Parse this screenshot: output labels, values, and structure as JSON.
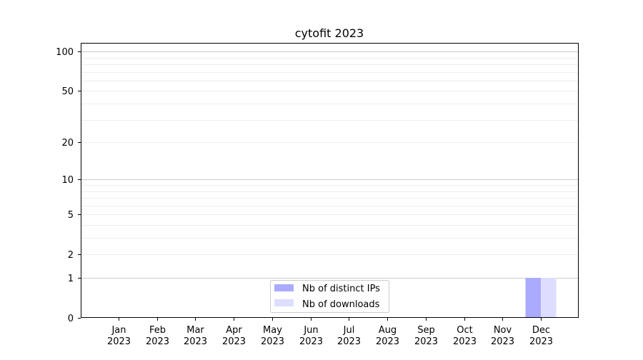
{
  "chart_data": {
    "type": "bar",
    "title": "cytofit 2023",
    "xlabel": "",
    "ylabel": "",
    "categories": [
      "Jan\n2023",
      "Feb\n2023",
      "Mar\n2023",
      "Apr\n2023",
      "May\n2023",
      "Jun\n2023",
      "Jul\n2023",
      "Aug\n2023",
      "Sep\n2023",
      "Oct\n2023",
      "Nov\n2023",
      "Dec\n2023"
    ],
    "series": [
      {
        "name": "Nb of distinct IPs",
        "color": "#aaaaff",
        "values": [
          0,
          0,
          0,
          0,
          0,
          0,
          0,
          0,
          0,
          0,
          0,
          1
        ]
      },
      {
        "name": "Nb of downloads",
        "color": "#ddddff",
        "values": [
          0,
          0,
          0,
          0,
          0,
          0,
          0,
          0,
          0,
          0,
          0,
          1
        ]
      }
    ],
    "yscale": "log(1+y)",
    "yticks": [
      0,
      1,
      2,
      5,
      10,
      20,
      50,
      100
    ],
    "ylim": [
      0,
      116
    ],
    "grid": true,
    "legend": "bottom-center"
  }
}
